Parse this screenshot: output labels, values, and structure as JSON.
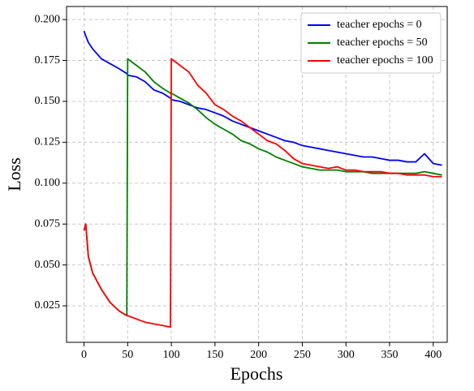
{
  "chart_data": {
    "type": "line",
    "x_label": "Epochs",
    "y_label": "Loss",
    "x": [
      0,
      2,
      5,
      10,
      20,
      30,
      40,
      49,
      50,
      60,
      70,
      80,
      90,
      99,
      100,
      110,
      120,
      130,
      140,
      150,
      160,
      170,
      180,
      190,
      200,
      210,
      220,
      230,
      240,
      250,
      260,
      270,
      280,
      290,
      300,
      310,
      320,
      330,
      340,
      350,
      360,
      370,
      380,
      390,
      400,
      410
    ],
    "series": [
      {
        "name": "teacher epochs = 0",
        "color": "#0000ff",
        "values": [
          0.193,
          0.19,
          0.186,
          0.182,
          0.176,
          0.173,
          0.17,
          0.167,
          0.166,
          0.165,
          0.162,
          0.157,
          0.155,
          0.152,
          0.151,
          0.15,
          0.148,
          0.146,
          0.145,
          0.143,
          0.141,
          0.138,
          0.136,
          0.134,
          0.132,
          0.13,
          0.128,
          0.126,
          0.125,
          0.123,
          0.122,
          0.121,
          0.12,
          0.119,
          0.118,
          0.117,
          0.116,
          0.116,
          0.115,
          0.114,
          0.114,
          0.113,
          0.113,
          0.118,
          0.112,
          0.111
        ]
      },
      {
        "name": "teacher epochs = 50",
        "color": "#008000",
        "values": [
          0.071,
          0.075,
          0.055,
          0.045,
          0.035,
          0.027,
          0.022,
          0.019,
          0.176,
          0.172,
          0.168,
          0.162,
          0.158,
          0.155,
          0.155,
          0.152,
          0.149,
          0.145,
          0.14,
          0.136,
          0.133,
          0.13,
          0.126,
          0.124,
          0.121,
          0.119,
          0.116,
          0.114,
          0.112,
          0.11,
          0.109,
          0.108,
          0.108,
          0.108,
          0.107,
          0.107,
          0.107,
          0.106,
          0.106,
          0.106,
          0.106,
          0.106,
          0.106,
          0.107,
          0.106,
          0.105
        ]
      },
      {
        "name": "teacher epochs = 100",
        "color": "#ff0000",
        "values": [
          0.071,
          0.075,
          0.055,
          0.045,
          0.035,
          0.027,
          0.022,
          0.019,
          0.019,
          0.017,
          0.015,
          0.014,
          0.013,
          0.012,
          0.176,
          0.172,
          0.168,
          0.16,
          0.155,
          0.148,
          0.145,
          0.141,
          0.138,
          0.134,
          0.13,
          0.126,
          0.124,
          0.12,
          0.115,
          0.112,
          0.111,
          0.11,
          0.109,
          0.11,
          0.108,
          0.108,
          0.107,
          0.107,
          0.107,
          0.106,
          0.106,
          0.105,
          0.105,
          0.105,
          0.104,
          0.104
        ]
      }
    ],
    "xlim": [
      -20,
      416
    ],
    "ylim": [
      0.0027,
      0.208
    ],
    "xticks": [
      0,
      50,
      100,
      150,
      200,
      250,
      300,
      350,
      400
    ],
    "yticks": [
      0.025,
      {
        "value": 0.05,
        "label": "0.050"
      },
      0.075,
      {
        "value": 0.1,
        "label": "0.100"
      },
      0.125,
      {
        "value": 0.15,
        "label": "0.150"
      },
      0.175,
      {
        "value": 0.2,
        "label": "0.200"
      }
    ],
    "grid": true,
    "legend": "upper right"
  }
}
